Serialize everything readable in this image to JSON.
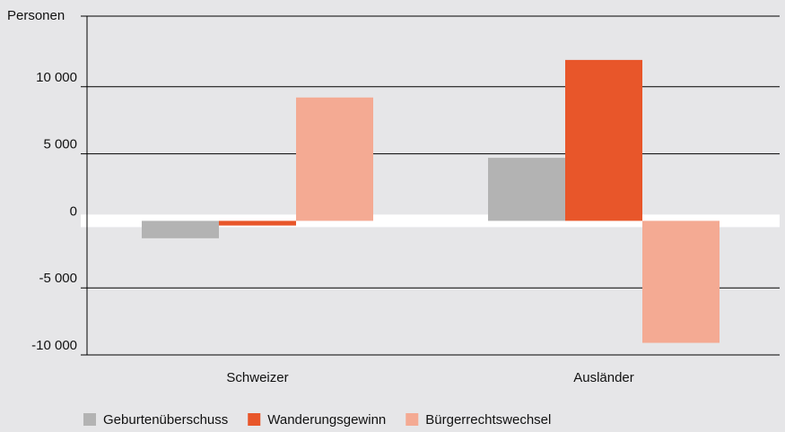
{
  "chart_data": {
    "type": "bar",
    "y_label": "Personen",
    "categories": [
      "Schweizer",
      "Ausländer"
    ],
    "series": [
      {
        "name": "Geburtenüberschuss",
        "color": "#b3b3b3",
        "values": [
          -1300,
          4700
        ]
      },
      {
        "name": "Wanderungsgewinn",
        "color": "#e8562a",
        "values": [
          -350,
          12000
        ]
      },
      {
        "name": "Bürgerrechtswechsel",
        "color": "#f4aa93",
        "values": [
          9200,
          -9100
        ]
      }
    ],
    "ylim": [
      -10000,
      15000
    ],
    "yticks": [
      {
        "value": -10000,
        "label": "-10 000"
      },
      {
        "value": -5000,
        "label": "-5 000"
      },
      0,
      {
        "value": 5000,
        "label": "5 000"
      },
      {
        "value": 10000,
        "label": "10 000"
      }
    ],
    "grid": true,
    "legend": "bottom"
  }
}
